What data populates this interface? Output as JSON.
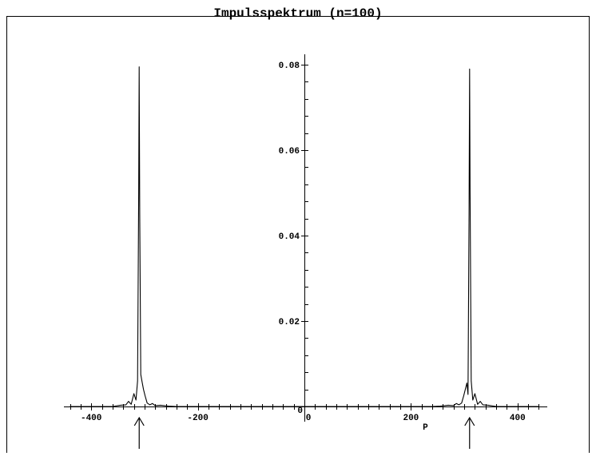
{
  "chart_data": {
    "type": "line",
    "title": "Impulsspektrum (n=100)",
    "xlabel": "P",
    "ylabel": "",
    "xlim": [
      -470,
      470
    ],
    "ylim": [
      0,
      0.082
    ],
    "x_ticks": [
      -400,
      -200,
      0,
      200,
      400
    ],
    "x_tick_labels": [
      "-400",
      "-200",
      "0",
      "200",
      "400"
    ],
    "y_ticks": [
      0.02,
      0.04,
      0.06,
      0.08
    ],
    "y_tick_labels": [
      "0.02",
      "0.04",
      "0.06",
      "0.08"
    ],
    "y_origin_label": "0",
    "grid": false,
    "legend": "none",
    "annotations": [
      {
        "type": "arrow",
        "x": -310,
        "direction": "up"
      },
      {
        "type": "arrow",
        "x": 310,
        "direction": "up"
      }
    ],
    "series": [
      {
        "x": [
          -440,
          -360,
          -345,
          -335,
          -330,
          -325,
          -320,
          -316,
          -313,
          -311,
          -310,
          -309,
          -307,
          -305,
          -302,
          -299,
          -295,
          -290,
          -285,
          -280,
          -270,
          -255,
          -240,
          -200,
          200,
          240,
          255,
          270,
          280,
          285,
          290,
          295,
          299,
          302,
          305,
          307,
          309,
          310,
          311,
          313,
          316,
          320,
          325,
          330,
          335,
          345,
          360,
          440
        ],
        "y": [
          0,
          0,
          0.0003,
          0.0004,
          0.0012,
          0.0005,
          0.003,
          0.0015,
          0.006,
          0.05,
          0.0795,
          0.045,
          0.0075,
          0.006,
          0.004,
          0.0025,
          0.0008,
          0.0004,
          0.0007,
          0.0002,
          0.0003,
          0.0001,
          0,
          0,
          0,
          0,
          0.0001,
          0.0003,
          0.0002,
          0.0007,
          0.0004,
          0.0008,
          0.0025,
          0.004,
          0.0055,
          0.0028,
          0.045,
          0.079,
          0.05,
          0.006,
          0.0015,
          0.003,
          0.0005,
          0.0012,
          0.0004,
          0.0003,
          0,
          0
        ],
        "color": "#000000"
      }
    ]
  }
}
